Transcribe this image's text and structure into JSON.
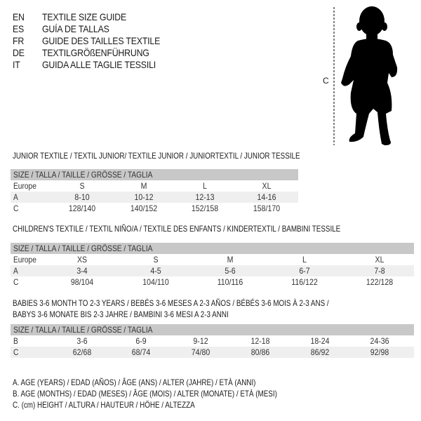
{
  "languages": [
    {
      "code": "EN",
      "text": "TEXTILE SIZE GUIDE"
    },
    {
      "code": "ES",
      "text": "GUÍA DE TALLAS"
    },
    {
      "code": "FR",
      "text": "GUIDE DES TAILLES TEXTILE"
    },
    {
      "code": "DE",
      "text": "TEXTILGRÖßENFÜHRUNG"
    },
    {
      "code": "IT",
      "text": "GUIDA ALLE TAGLIE TESSILI"
    }
  ],
  "figure": {
    "measure_label": "C",
    "icon": "child-silhouette"
  },
  "colors": {
    "header_bg": "#c8c8c8",
    "shade_row": "#efefef"
  },
  "junior": {
    "title": "JUNIOR TEXTILE / TEXTIL JUNIOR/ TEXTILE JUNIOR / JUNIORTEXTIL / JUNIOR TESSILE",
    "header": "SIZE / TALLA / TAILLE / GRÖSSE / TAGLIA",
    "rows": [
      {
        "label": "Europe",
        "cells": [
          "S",
          "M",
          "L",
          "XL"
        ]
      },
      {
        "label": "A",
        "cells": [
          "8-10",
          "10-12",
          "12-13",
          "14-16"
        ]
      },
      {
        "label": "C",
        "cells": [
          "128/140",
          "140/152",
          "152/158",
          "158/170"
        ]
      }
    ]
  },
  "children": {
    "title": "CHILDREN'S TEXTILE / TEXTIL NIÑO/A / TEXTILE DES ENFANTS / KINDERTEXTIL / BAMBINI TESSILE",
    "header": "SIZE / TALLA / TAILLE / GRÖSSE / TAGLIA",
    "rows": [
      {
        "label": "Europe",
        "cells": [
          "XS",
          "S",
          "M",
          "L",
          "XL"
        ]
      },
      {
        "label": "A",
        "cells": [
          "3-4",
          "4-5",
          "5-6",
          "6-7",
          "7-8"
        ]
      },
      {
        "label": "C",
        "cells": [
          "98/104",
          "104/110",
          "110/116",
          "116/122",
          "122/128"
        ]
      }
    ]
  },
  "babies": {
    "title_line1": "BABIES 3-6 MONTH TO 2-3 YEARS / BEBÉS 3-6 MESES A 2-3 AÑOS / BÉBÉS 3-6 MOIS À 2-3 ANS /",
    "title_line2": "BABYS 3-6 MONATE BIS 2-3 JAHRE / BAMBINI 3-6 MESI A 2-3 ANNI",
    "header": "SIZE / TALLA / TAILLE / GRÖSSE / TAGLIA",
    "rows": [
      {
        "label": "B",
        "cells": [
          "3-6",
          "6-9",
          "9-12",
          "12-18",
          "18-24",
          "24-36"
        ]
      },
      {
        "label": "C",
        "cells": [
          "62/68",
          "68/74",
          "74/80",
          "80/86",
          "86/92",
          "92/98"
        ]
      }
    ]
  },
  "legend": [
    "A. AGE (YEARS) / EDAD (AÑOS) / ÂGE (ANS) / ALTER (JAHRE) / ETÀ (ANNI)",
    "B. AGE (MONTHS) / EDAD (MESES) / ÂGE (MOIS) / ALTER (MONATE) / ETÀ (MESI)",
    "C. (cm) HEIGHT / ALTURA / HAUTEUR / HÖHE / ALTEZZA"
  ]
}
